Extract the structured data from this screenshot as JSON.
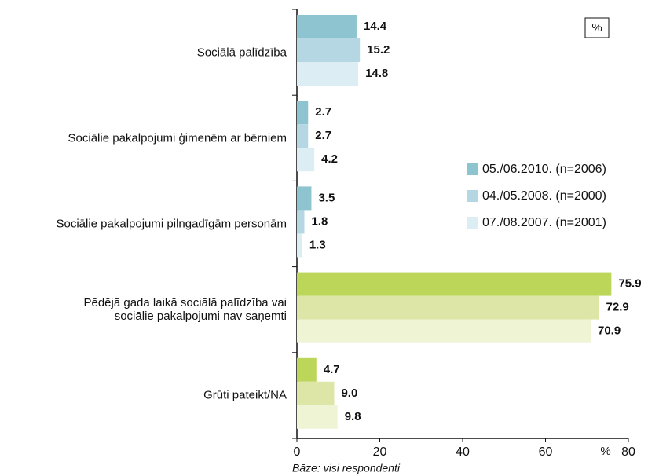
{
  "chart_data": {
    "type": "hbar",
    "categories": [
      "Sociālā palīdzība",
      "Sociālie pakalpojumi ģimenēm ar bērniem",
      "Sociālie pakalpojumi pilngadīgām personām",
      "Pēdējā gada laikā sociālā palīdzība vai\nsociālie pakalpojumi nav saņemti",
      "Grūti pateikt/NA"
    ],
    "series": [
      {
        "name": "05./06.2010. (n=2006)",
        "color": "#8ec4cf",
        "colors": [
          "#8ec4cf",
          "#8ec4cf",
          "#8ec4cf",
          "#bcd65a",
          "#bcd65a"
        ],
        "values": [
          14.4,
          2.7,
          3.5,
          75.9,
          4.7
        ],
        "value_labels": [
          "14.4",
          "2.7",
          "3.5",
          "75.9",
          "4.7"
        ]
      },
      {
        "name": "04./05.2008. (n=2000)",
        "color": "#b5d7e3",
        "colors": [
          "#b5d7e3",
          "#b5d7e3",
          "#b5d7e3",
          "#dde6a6",
          "#dde6a6"
        ],
        "values": [
          15.2,
          2.7,
          1.8,
          72.9,
          9.0
        ],
        "value_labels": [
          "15.2",
          "2.7",
          "1.8",
          "72.9",
          "9.0"
        ]
      },
      {
        "name": "07./08.2007. (n=2001)",
        "color": "#dceef3",
        "colors": [
          "#dceef3",
          "#dceef3",
          "#dceef3",
          "#eef4d4",
          "#eef4d4"
        ],
        "values": [
          14.8,
          4.2,
          1.3,
          70.9,
          9.8
        ],
        "value_labels": [
          "14.8",
          "4.2",
          "1.3",
          "70.9",
          "9.8"
        ]
      }
    ],
    "xlim": [
      0,
      80
    ],
    "xticks": [
      0,
      20,
      40,
      60,
      80
    ],
    "unit_label": "%",
    "unit_box": "%",
    "footnote": "Bāze: visi respondenti",
    "legend": "right"
  }
}
